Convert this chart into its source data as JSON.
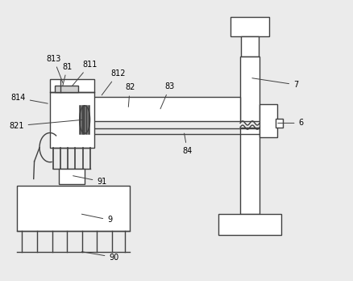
{
  "bg_color": "#ebebeb",
  "line_color": "#404040",
  "fill_color": "#ffffff",
  "lw": 1.0
}
